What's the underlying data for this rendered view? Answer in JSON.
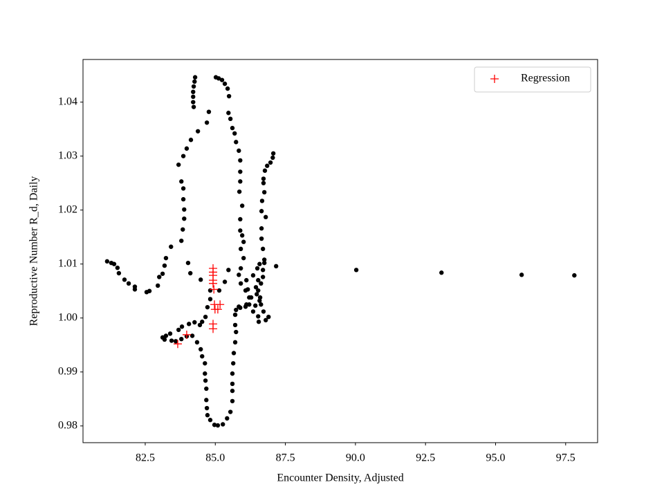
{
  "chart_data": {
    "type": "scatter",
    "xlabel": "Encounter Density, Adjusted",
    "ylabel": "Reproductive Number R_d, Daily",
    "xlim": [
      80.28,
      98.64
    ],
    "ylim": [
      0.9769,
      1.0479
    ],
    "xticks": [
      82.5,
      {
        "value": 85,
        "label": "85.0"
      },
      87.5,
      {
        "value": 90,
        "label": "90.0"
      },
      92.5,
      {
        "value": 95,
        "label": "95.0"
      },
      97.5
    ],
    "yticks": [
      0.98,
      0.99,
      {
        "value": 1,
        "label": "1.00"
      },
      1.01,
      1.02,
      1.03,
      1.04
    ],
    "legend": "upper right",
    "series": [
      {
        "color": "#000000",
        "marker": "o",
        "x": [
          81.14,
          81.29,
          81.39,
          81.51,
          81.56,
          81.76,
          81.91,
          82.13,
          82.13,
          82.55,
          82.65,
          82.95,
          83.0,
          83.12,
          83.19,
          83.24,
          83.42,
          83.79,
          83.84,
          83.89,
          83.89,
          83.86,
          83.86,
          83.79,
          83.69,
          83.86,
          83.98,
          84.13,
          84.38,
          84.7,
          84.77,
          84.28,
          84.26,
          84.23,
          84.21,
          84.21,
          84.21,
          84.23,
          85.02,
          85.12,
          85.24,
          85.34,
          85.44,
          85.49,
          85.47,
          85.54,
          85.61,
          85.69,
          85.74,
          85.84,
          85.89,
          85.89,
          85.89,
          85.86,
          85.96,
          85.89,
          85.89,
          85.96,
          86.01,
          85.91,
          86.01,
          85.91,
          85.84,
          85.91,
          86.08,
          86.21,
          86.11,
          85.89,
          85.74,
          85.71,
          85.71,
          85.74,
          85.71,
          85.66,
          85.64,
          85.61,
          85.61,
          85.61,
          85.61,
          85.54,
          85.42,
          85.27,
          85.09,
          84.97,
          84.82,
          84.72,
          84.7,
          84.68,
          84.68,
          84.65,
          84.63,
          84.63,
          84.53,
          84.48,
          84.35,
          84.18,
          83.98,
          83.79,
          83.59,
          83.44,
          83.19,
          83.12,
          83.24,
          83.39,
          83.69,
          83.81,
          84.06,
          84.26,
          84.45,
          84.53,
          84.65,
          84.72,
          84.82,
          84.82,
          87.07,
          87.05,
          86.97,
          86.85,
          86.77,
          86.72,
          86.72,
          86.75,
          86.67,
          86.65,
          86.8,
          86.65,
          86.65,
          86.7,
          86.75,
          86.58,
          86.5,
          86.35,
          86.53,
          86.45,
          86.48,
          86.58,
          86.43,
          86.35,
          86.53,
          86.55,
          86.8,
          86.9,
          86.72,
          86.63,
          86.6,
          86.53,
          86.63,
          86.7,
          86.7,
          86.75,
          87.17,
          86.11,
          86.16,
          86.28,
          86.21,
          86.08,
          85.84,
          84.03,
          84.11,
          84.48,
          85.14,
          85.34,
          85.47,
          90.03,
          93.07,
          95.93,
          97.81
        ],
        "values": [
          1.0105,
          1.0102,
          1.01,
          1.0093,
          1.0083,
          1.0071,
          1.0064,
          1.0058,
          1.0053,
          1.0048,
          1.005,
          1.006,
          1.0076,
          1.0082,
          1.0097,
          1.0111,
          1.0132,
          1.0143,
          1.0164,
          1.0184,
          1.0201,
          1.022,
          1.024,
          1.0253,
          1.0284,
          1.03,
          1.0314,
          1.033,
          1.0346,
          1.0362,
          1.0382,
          1.0446,
          1.0438,
          1.0429,
          1.0419,
          1.041,
          1.04,
          1.0391,
          1.0446,
          1.0444,
          1.0441,
          1.0434,
          1.0425,
          1.0411,
          1.038,
          1.0369,
          1.0352,
          1.0342,
          1.0326,
          1.031,
          1.0292,
          1.0271,
          1.0253,
          1.0234,
          1.0208,
          1.0183,
          1.0162,
          1.0153,
          1.0141,
          1.0128,
          1.0111,
          1.0092,
          1.008,
          1.0064,
          1.0051,
          1.0038,
          1.0025,
          1.0019,
          1.0015,
          1.0006,
          0.9987,
          0.9974,
          0.9955,
          0.9935,
          0.9916,
          0.9897,
          0.9878,
          0.9865,
          0.9846,
          0.9826,
          0.9814,
          0.9803,
          0.9801,
          0.9802,
          0.9811,
          0.982,
          0.9833,
          0.9848,
          0.9869,
          0.9884,
          0.9897,
          0.9916,
          0.9929,
          0.9942,
          0.9955,
          0.9967,
          0.9966,
          0.9961,
          0.9957,
          0.9958,
          0.996,
          0.9964,
          0.9967,
          0.9971,
          0.9978,
          0.9984,
          0.9989,
          0.9992,
          0.9987,
          0.9993,
          1.0002,
          1.002,
          1.0035,
          1.0051,
          1.0305,
          1.0297,
          1.0288,
          1.0282,
          1.0273,
          1.0258,
          1.025,
          1.0233,
          1.0217,
          1.0198,
          1.0187,
          1.0166,
          1.0147,
          1.0128,
          1.0108,
          1.01,
          1.0092,
          1.0079,
          1.007,
          1.0057,
          1.0044,
          1.0032,
          1.0023,
          1.0012,
          1.0003,
          0.9993,
          0.9996,
          1.0002,
          1.0012,
          1.0025,
          1.0038,
          1.0051,
          1.0064,
          1.0076,
          1.0089,
          1.0102,
          1.0096,
          1.007,
          1.0053,
          1.0038,
          1.0025,
          1.0021,
          1.0021,
          1.0102,
          1.0083,
          1.0071,
          1.0051,
          1.0067,
          1.0089,
          1.0089,
          1.0084,
          1.008,
          1.0079
        ]
      },
      {
        "name": "Regression",
        "color": "#ff0000",
        "marker": "+",
        "x": [
          83.66,
          83.98,
          84.92,
          84.92,
          84.92,
          84.92,
          84.92,
          84.95,
          84.97,
          85.09,
          85.17,
          84.92,
          84.92,
          84.99
        ],
        "values": [
          0.9952,
          0.9969,
          1.0092,
          1.0085,
          1.0079,
          1.007,
          1.0064,
          1.0053,
          1.0025,
          1.0016,
          1.0025,
          0.9989,
          0.998,
          1.0016
        ]
      }
    ]
  }
}
